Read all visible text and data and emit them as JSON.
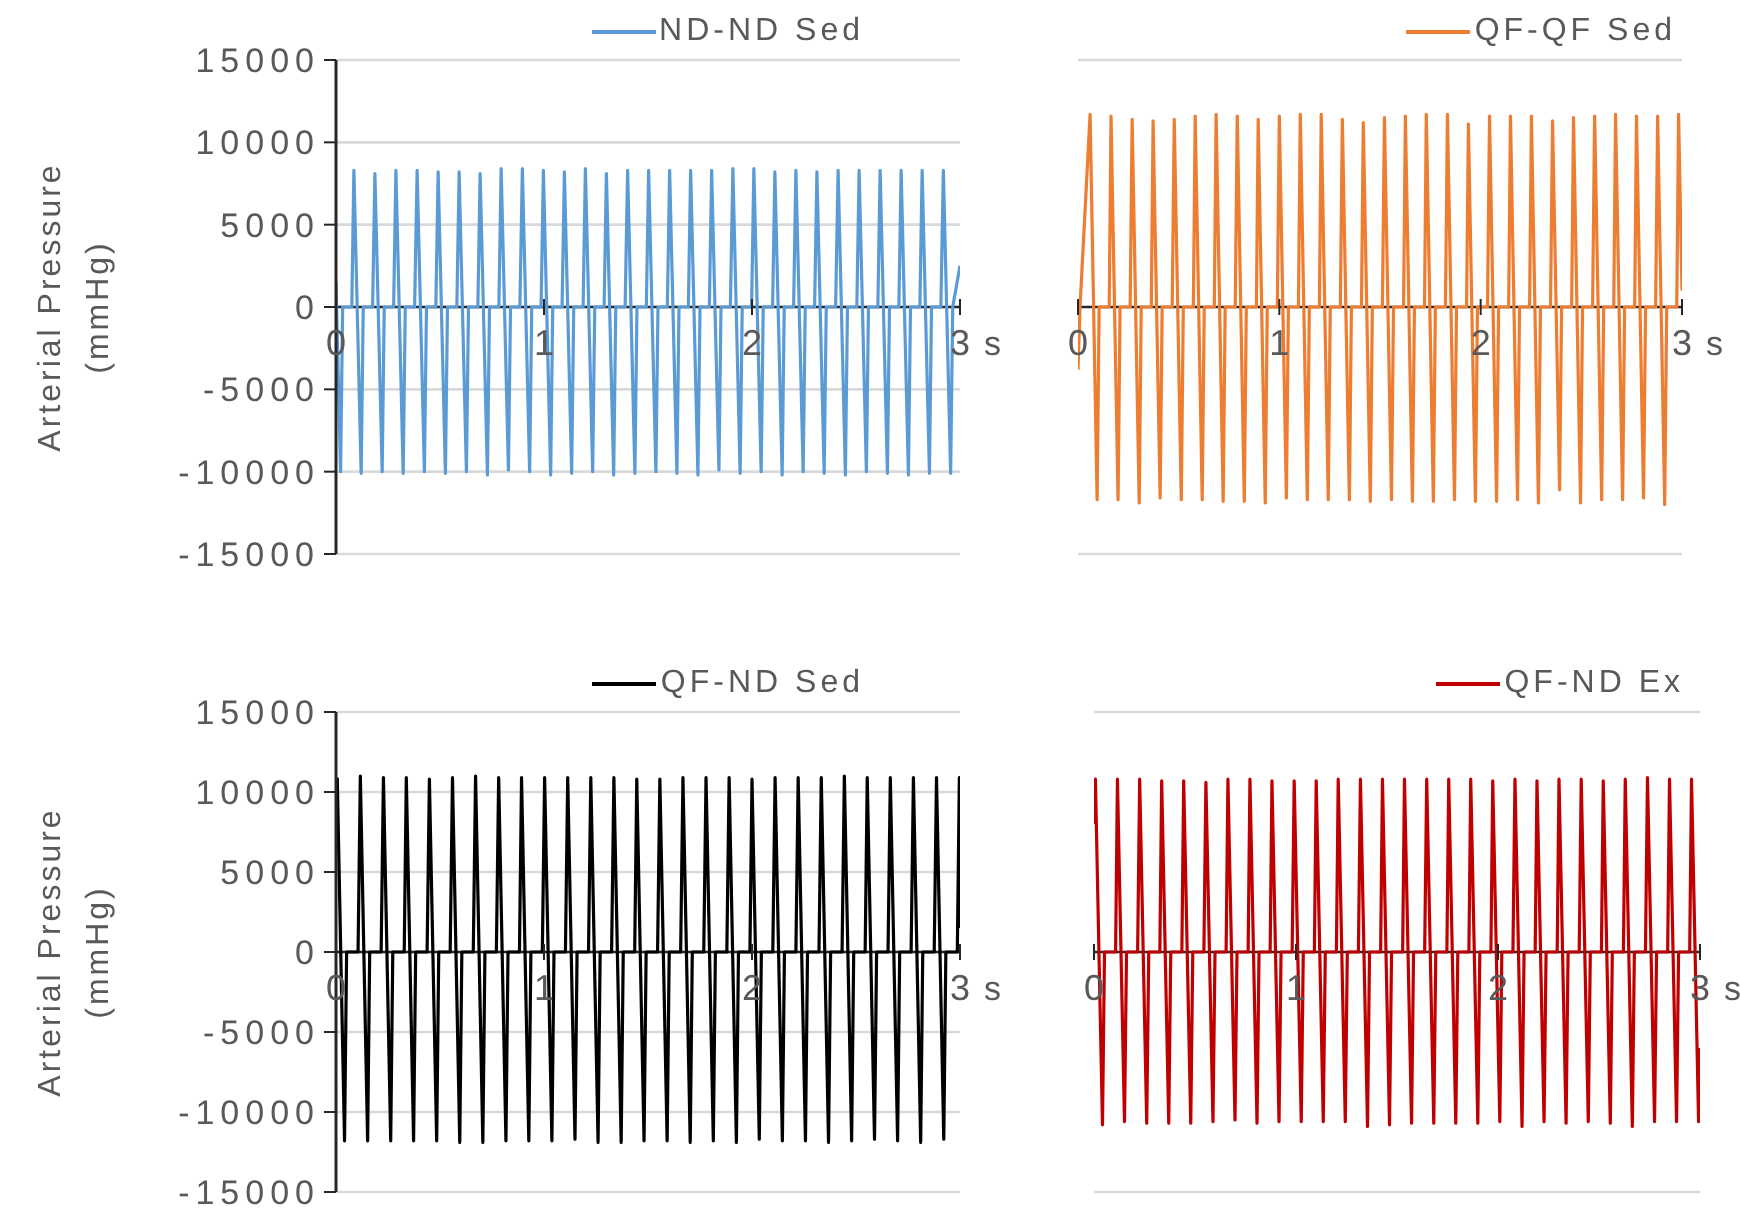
{
  "chart_data": [
    {
      "type": "line",
      "xlabel": "s",
      "ylabel": "Arterial Pressure (mmHg)",
      "xlim": [
        0,
        3
      ],
      "xticks": [
        0,
        1,
        2,
        3
      ],
      "ylim": [
        -15000,
        15000
      ],
      "yticks": [
        -15000,
        -10000,
        -5000,
        0,
        5000,
        10000,
        15000
      ],
      "grid": "y",
      "legend": "top right",
      "marker": "none",
      "line_style": "solid",
      "series": [
        {
          "name": "ND-ND Sed",
          "color": "#5b9bd5",
          "x": [
            0,
            0.022,
            0.032,
            0.076,
            0.086,
            0.121,
            0.131,
            0.176,
            0.187,
            0.222,
            0.232,
            0.277,
            0.288,
            0.323,
            0.333,
            0.378,
            0.39,
            0.425,
            0.435,
            0.48,
            0.491,
            0.526,
            0.536,
            0.581,
            0.592,
            0.627,
            0.637,
            0.682,
            0.693,
            0.728,
            0.738,
            0.783,
            0.794,
            0.829,
            0.839,
            0.884,
            0.896,
            0.931,
            0.941,
            0.986,
            0.997,
            1.032,
            1.042,
            1.087,
            1.098,
            1.133,
            1.143,
            1.188,
            1.199,
            1.234,
            1.244,
            1.289,
            1.3,
            1.335,
            1.345,
            1.39,
            1.402,
            1.437,
            1.447,
            1.492,
            1.503,
            1.538,
            1.548,
            1.593,
            1.604,
            1.639,
            1.649,
            1.694,
            1.705,
            1.74,
            1.75,
            1.795,
            1.806,
            1.841,
            1.851,
            1.896,
            1.908,
            1.943,
            1.953,
            1.998,
            2.009,
            2.044,
            2.054,
            2.099,
            2.11,
            2.145,
            2.155,
            2.2,
            2.211,
            2.246,
            2.256,
            2.301,
            2.312,
            2.347,
            2.357,
            2.402,
            2.414,
            2.449,
            2.459,
            2.504,
            2.515,
            2.55,
            2.56,
            2.605,
            2.616,
            2.651,
            2.661,
            2.706,
            2.717,
            2.752,
            2.762,
            2.807,
            2.818,
            2.853,
            2.863,
            2.908,
            2.92,
            2.955,
            2.965,
            3.0
          ],
          "values": [
            1500,
            -10000,
            0,
            0,
            8300,
            -10100,
            0,
            0,
            8100,
            -10000,
            0,
            0,
            8300,
            -10100,
            0,
            0,
            8300,
            -10000,
            0,
            0,
            8200,
            -10100,
            0,
            0,
            8200,
            -10000,
            0,
            0,
            8100,
            -10200,
            0,
            0,
            8400,
            -9900,
            0,
            0,
            8400,
            -10000,
            0,
            0,
            8300,
            -10200,
            0,
            0,
            8200,
            -10100,
            0,
            0,
            8400,
            -10000,
            0,
            0,
            8100,
            -10200,
            0,
            0,
            8300,
            -10100,
            0,
            0,
            8300,
            -10000,
            0,
            0,
            8300,
            -10100,
            0,
            0,
            8300,
            -10200,
            0,
            0,
            8300,
            -9900,
            0,
            0,
            8400,
            -10100,
            0,
            0,
            8400,
            -10000,
            0,
            0,
            8200,
            -10200,
            0,
            0,
            8300,
            -10000,
            0,
            0,
            8200,
            -10100,
            0,
            0,
            8300,
            -10200,
            0,
            0,
            8300,
            -10000,
            0,
            0,
            8300,
            -10100,
            0,
            0,
            8300,
            -10200,
            0,
            0,
            8300,
            -10100,
            0,
            0,
            8300,
            -10100,
            0,
            2500
          ]
        }
      ]
    },
    {
      "type": "line",
      "xlabel": "s",
      "xlim": [
        0,
        3
      ],
      "xticks": [
        0,
        1,
        2,
        3
      ],
      "ylim": [
        -15000,
        15000
      ],
      "yticks": [
        -15000,
        -10000,
        -5000,
        0,
        5000,
        10000,
        15000
      ],
      "grid": "y",
      "legend": "top right",
      "marker": "none",
      "line_style": "solid",
      "tick_labels": "x",
      "series": [
        {
          "name": "QF-QF Sed",
          "color": "#ed7d31",
          "x": [
            0,
            0.01,
            0.06,
            0.095,
            0.105,
            0.155,
            0.164,
            0.199,
            0.209,
            0.259,
            0.269,
            0.304,
            0.314,
            0.364,
            0.373,
            0.408,
            0.418,
            0.468,
            0.478,
            0.513,
            0.523,
            0.573,
            0.582,
            0.617,
            0.627,
            0.677,
            0.686,
            0.721,
            0.731,
            0.781,
            0.791,
            0.826,
            0.836,
            0.886,
            0.895,
            0.93,
            0.94,
            0.99,
            1.0,
            1.035,
            1.045,
            1.095,
            1.104,
            1.139,
            1.149,
            1.199,
            1.208,
            1.243,
            1.253,
            1.303,
            1.313,
            1.348,
            1.358,
            1.408,
            1.417,
            1.452,
            1.462,
            1.512,
            1.522,
            1.557,
            1.567,
            1.617,
            1.626,
            1.661,
            1.671,
            1.721,
            1.73,
            1.765,
            1.775,
            1.825,
            1.835,
            1.87,
            1.88,
            1.93,
            1.939,
            1.974,
            1.984,
            2.034,
            2.044,
            2.079,
            2.089,
            2.139,
            2.148,
            2.183,
            2.193,
            2.243,
            2.252,
            2.287,
            2.297,
            2.347,
            2.357,
            2.392,
            2.402,
            2.452,
            2.461,
            2.496,
            2.506,
            2.556,
            2.566,
            2.601,
            2.611,
            2.661,
            2.67,
            2.705,
            2.715,
            2.765,
            2.774,
            2.809,
            2.819,
            2.869,
            2.879,
            2.914,
            2.924,
            2.974,
            2.983,
            3.0
          ],
          "values": [
            -3800,
            0,
            11700,
            -11700,
            0,
            0,
            11600,
            -11700,
            0,
            0,
            11400,
            -11900,
            0,
            0,
            11300,
            -11600,
            0,
            0,
            11400,
            -11700,
            0,
            0,
            11600,
            -11700,
            0,
            0,
            11700,
            -11800,
            0,
            0,
            11600,
            -11800,
            0,
            0,
            11400,
            -11900,
            0,
            0,
            11600,
            -11600,
            0,
            0,
            11700,
            -11700,
            0,
            0,
            11700,
            -11700,
            0,
            0,
            11400,
            -11700,
            0,
            0,
            11200,
            -11800,
            0,
            0,
            11500,
            -11700,
            0,
            0,
            11600,
            -11800,
            0,
            0,
            11700,
            -11800,
            0,
            0,
            11700,
            -11700,
            0,
            0,
            11100,
            -11800,
            0,
            0,
            11600,
            -11800,
            0,
            0,
            11600,
            -11700,
            0,
            0,
            11600,
            -11900,
            0,
            0,
            11300,
            -11100,
            0,
            0,
            11500,
            -11900,
            0,
            0,
            11600,
            -11700,
            0,
            0,
            11700,
            -11700,
            0,
            0,
            11600,
            -11600,
            0,
            0,
            11600,
            -12000,
            0,
            0,
            11700,
            1000
          ]
        }
      ]
    },
    {
      "type": "line",
      "xlabel": "s",
      "ylabel": "Arterial Pressure (mmHg)",
      "xlim": [
        0,
        3
      ],
      "xticks": [
        0,
        1,
        2,
        3
      ],
      "ylim": [
        -15000,
        15000
      ],
      "yticks": [
        -15000,
        -10000,
        -5000,
        0,
        5000,
        10000,
        15000
      ],
      "grid": "y",
      "legend": "top right",
      "marker": "none",
      "line_style": "solid",
      "series": [
        {
          "name": "QF-ND Sed",
          "color": "#000000",
          "x": [
            0.006,
            0.041,
            0.051,
            0.106,
            0.117,
            0.152,
            0.162,
            0.217,
            0.228,
            0.263,
            0.273,
            0.328,
            0.338,
            0.373,
            0.383,
            0.438,
            0.449,
            0.484,
            0.494,
            0.549,
            0.56,
            0.595,
            0.605,
            0.66,
            0.671,
            0.706,
            0.716,
            0.771,
            0.782,
            0.817,
            0.827,
            0.882,
            0.892,
            0.927,
            0.937,
            0.992,
            1.003,
            1.038,
            1.048,
            1.103,
            1.114,
            1.149,
            1.159,
            1.214,
            1.225,
            1.26,
            1.27,
            1.325,
            1.336,
            1.371,
            1.381,
            1.436,
            1.446,
            1.481,
            1.491,
            1.546,
            1.557,
            1.592,
            1.602,
            1.657,
            1.668,
            1.703,
            1.713,
            1.768,
            1.779,
            1.814,
            1.824,
            1.879,
            1.89,
            1.925,
            1.935,
            1.99,
            2.0,
            2.035,
            2.045,
            2.1,
            2.111,
            2.146,
            2.156,
            2.211,
            2.222,
            2.257,
            2.267,
            2.322,
            2.333,
            2.368,
            2.378,
            2.433,
            2.444,
            2.479,
            2.489,
            2.544,
            2.554,
            2.589,
            2.599,
            2.654,
            2.665,
            2.7,
            2.71,
            2.765,
            2.776,
            2.811,
            2.821,
            2.876,
            2.887,
            2.922,
            2.932,
            2.987,
            2.997,
            3.0
          ],
          "values": [
            10900,
            -11800,
            0,
            0,
            11000,
            -11800,
            0,
            0,
            10900,
            -11800,
            0,
            0,
            10900,
            -11800,
            0,
            0,
            10800,
            -11800,
            0,
            0,
            10900,
            -11900,
            0,
            0,
            11000,
            -11900,
            0,
            0,
            10900,
            -11800,
            0,
            0,
            10900,
            -11800,
            0,
            0,
            10900,
            -11800,
            0,
            0,
            10900,
            -11700,
            0,
            0,
            10900,
            -11900,
            0,
            0,
            10900,
            -11900,
            0,
            0,
            10800,
            -11800,
            0,
            0,
            10800,
            -11800,
            0,
            0,
            10900,
            -11900,
            0,
            0,
            10900,
            -11800,
            0,
            0,
            10900,
            -11900,
            0,
            0,
            10800,
            -11700,
            0,
            0,
            10900,
            -11800,
            0,
            0,
            10900,
            -11800,
            0,
            0,
            10900,
            -11900,
            0,
            0,
            11000,
            -11800,
            0,
            0,
            10900,
            -11700,
            0,
            0,
            10900,
            -11800,
            0,
            0,
            10900,
            -11900,
            0,
            0,
            10900,
            -11700,
            0,
            0,
            10900,
            1500
          ]
        }
      ]
    },
    {
      "type": "line",
      "xlabel": "s",
      "xlim": [
        0,
        3
      ],
      "xticks": [
        0,
        1,
        2,
        3
      ],
      "ylim": [
        -15000,
        15000
      ],
      "yticks": [
        -15000,
        -10000,
        -5000,
        0,
        5000,
        10000,
        15000
      ],
      "grid": "y",
      "legend": "top right",
      "marker": "none",
      "line_style": "solid",
      "tick_labels": "x",
      "series": [
        {
          "name": "QF-ND Ex",
          "color": "#c00000",
          "x": [
            0,
            0.007,
            0.042,
            0.052,
            0.107,
            0.116,
            0.151,
            0.161,
            0.216,
            0.226,
            0.261,
            0.271,
            0.326,
            0.335,
            0.37,
            0.38,
            0.435,
            0.444,
            0.479,
            0.489,
            0.544,
            0.554,
            0.589,
            0.599,
            0.654,
            0.663,
            0.698,
            0.708,
            0.763,
            0.772,
            0.807,
            0.817,
            0.872,
            0.881,
            0.916,
            0.926,
            0.981,
            0.991,
            1.026,
            1.036,
            1.091,
            1.1,
            1.135,
            1.145,
            1.2,
            1.209,
            1.244,
            1.254,
            1.309,
            1.319,
            1.354,
            1.364,
            1.419,
            1.428,
            1.463,
            1.473,
            1.528,
            1.537,
            1.572,
            1.582,
            1.637,
            1.647,
            1.682,
            1.692,
            1.747,
            1.756,
            1.791,
            1.801,
            1.856,
            1.865,
            1.9,
            1.91,
            1.965,
            1.974,
            2.009,
            2.019,
            2.074,
            2.084,
            2.119,
            2.129,
            2.184,
            2.193,
            2.228,
            2.238,
            2.293,
            2.302,
            2.337,
            2.347,
            2.402,
            2.412,
            2.447,
            2.457,
            2.512,
            2.521,
            2.556,
            2.566,
            2.621,
            2.63,
            2.665,
            2.675,
            2.73,
            2.74,
            2.775,
            2.785,
            2.84,
            2.849,
            2.884,
            2.894,
            2.949,
            2.958,
            2.993,
            3.0
          ],
          "values": [
            8000,
            10800,
            -10800,
            0,
            0,
            10800,
            -10600,
            0,
            0,
            10800,
            -10700,
            0,
            0,
            10700,
            -10700,
            0,
            0,
            10700,
            -10700,
            0,
            0,
            10600,
            -10600,
            0,
            0,
            10800,
            -10500,
            0,
            0,
            10800,
            -10700,
            0,
            0,
            10700,
            -10600,
            0,
            0,
            10700,
            -10600,
            0,
            0,
            10700,
            -10600,
            0,
            0,
            10800,
            -10600,
            0,
            0,
            10800,
            -10900,
            0,
            0,
            10800,
            -10800,
            0,
            0,
            10800,
            -10700,
            0,
            0,
            10800,
            -10700,
            0,
            0,
            10800,
            -10700,
            0,
            0,
            10800,
            -10700,
            0,
            0,
            10700,
            -10600,
            0,
            0,
            10800,
            -10900,
            0,
            0,
            10700,
            -10600,
            0,
            0,
            10800,
            -10700,
            0,
            0,
            10800,
            -10600,
            0,
            0,
            10700,
            -10700,
            0,
            0,
            10800,
            -10900,
            0,
            0,
            10900,
            -10600,
            0,
            0,
            10800,
            -10600,
            0,
            0,
            10800,
            -10600,
            -6000
          ]
        }
      ]
    }
  ]
}
